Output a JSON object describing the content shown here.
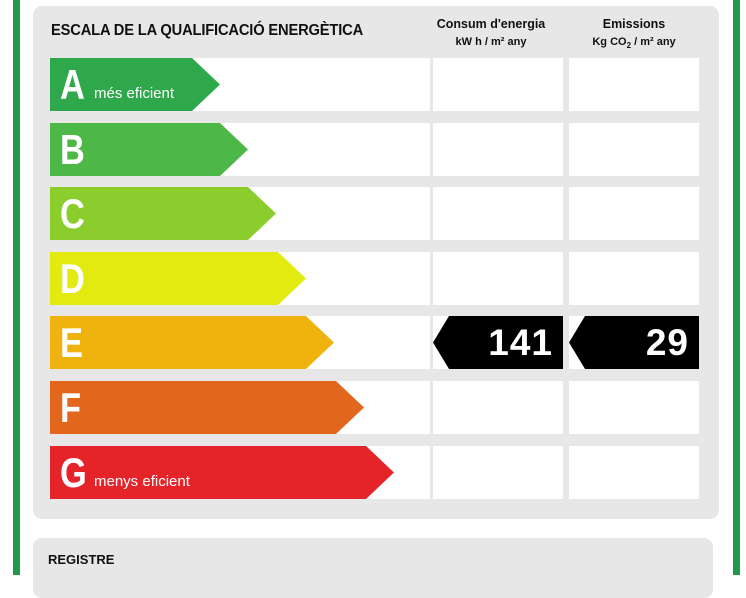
{
  "scale": {
    "title": "ESCALA DE LA QUALIFICACIÓ ENERGÈTICA",
    "consumption_header": "Consum d'energia",
    "consumption_unit": "kW h / m² any",
    "emissions_header": "Emissions",
    "emissions_unit_pre": "Kg CO",
    "emissions_unit_sub": "2",
    "emissions_unit_post": " / m² any",
    "classes": [
      {
        "letter": "A",
        "note": "més eficient",
        "color": "#2ea84a"
      },
      {
        "letter": "B",
        "note": "",
        "color": "#4db748"
      },
      {
        "letter": "C",
        "note": "",
        "color": "#8ccd2e"
      },
      {
        "letter": "D",
        "note": "",
        "color": "#e3ea10"
      },
      {
        "letter": "E",
        "note": "",
        "color": "#f0b20e"
      },
      {
        "letter": "F",
        "note": "",
        "color": "#e2661c"
      },
      {
        "letter": "G",
        "note": "menys eficient",
        "color": "#e5242a"
      }
    ],
    "rating_class": "E",
    "consumption_value": "141",
    "emissions_value": "29"
  },
  "registre": {
    "label": "REGISTRE"
  },
  "colors": {
    "frame_green": "#1e9a4a",
    "panel_gray": "#e7e7e7",
    "tag_black": "#000000"
  }
}
